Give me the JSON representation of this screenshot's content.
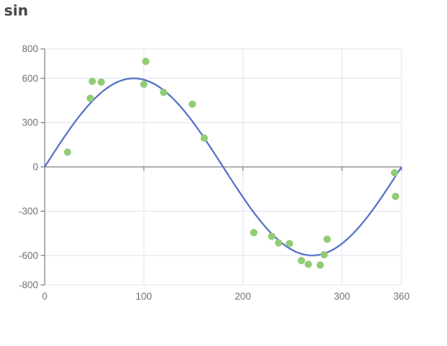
{
  "chart_data": {
    "type": "line",
    "title": "sin",
    "xlabel": "",
    "ylabel": "",
    "xlim": [
      0,
      360
    ],
    "ylim": [
      -800,
      800
    ],
    "x_ticks": [
      0,
      100,
      200,
      300,
      360
    ],
    "y_ticks": [
      -800,
      -600,
      -300,
      0,
      300,
      600,
      800
    ],
    "grid": true,
    "series": [
      {
        "type": "line",
        "function": "600*sin(x deg)",
        "amplitude": 600,
        "x_range": [
          0,
          360
        ],
        "color": "#5470c6"
      },
      {
        "type": "scatter",
        "color": "#91cc75",
        "points": [
          [
            23,
            100
          ],
          [
            46,
            465
          ],
          [
            48,
            580
          ],
          [
            57,
            575
          ],
          [
            100,
            560
          ],
          [
            102,
            715
          ],
          [
            120,
            505
          ],
          [
            149,
            425
          ],
          [
            161,
            195
          ],
          [
            211,
            -445
          ],
          [
            229,
            -470
          ],
          [
            236,
            -515
          ],
          [
            247,
            -520
          ],
          [
            259,
            -635
          ],
          [
            266,
            -660
          ],
          [
            278,
            -665
          ],
          [
            282,
            -595
          ],
          [
            285,
            -490
          ],
          [
            353,
            -40
          ],
          [
            354,
            -200
          ]
        ]
      }
    ]
  }
}
